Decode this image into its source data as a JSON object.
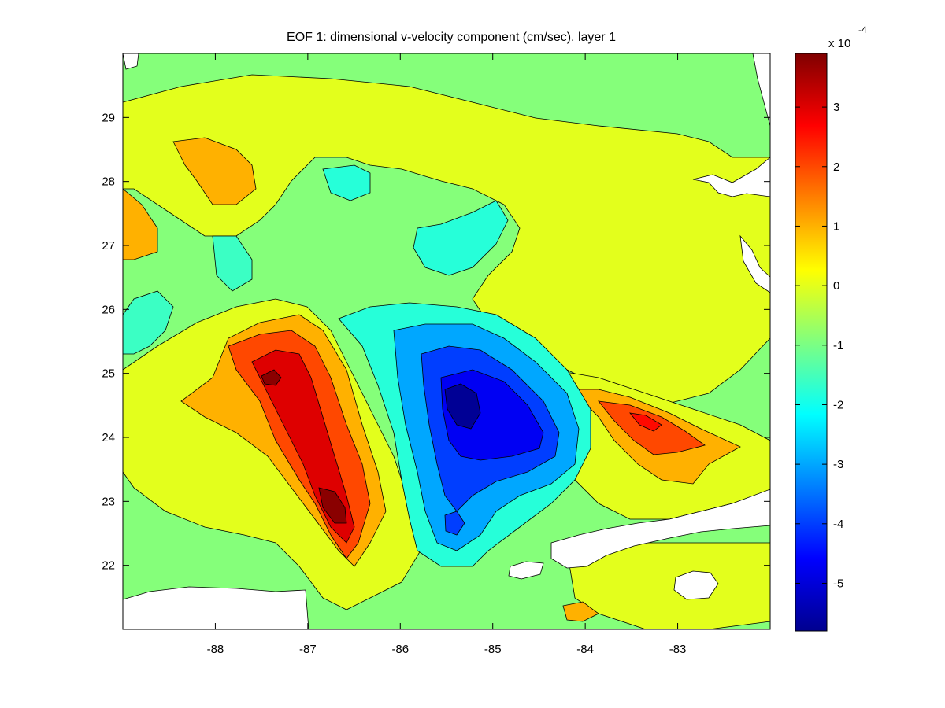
{
  "chart_data": {
    "type": "heatmap",
    "title": "EOF 1: dimensional v-velocity component (cm/sec), layer 1",
    "xlabel": "",
    "ylabel": "",
    "xlim": [
      -89,
      -82
    ],
    "ylim": [
      21,
      30
    ],
    "x_ticks": [
      "-88",
      "-87",
      "-86",
      "-85",
      "-84",
      "-83"
    ],
    "x_tick_values": [
      -88,
      -87,
      -86,
      -85,
      -84,
      -83
    ],
    "y_ticks": [
      "22",
      "23",
      "24",
      "25",
      "26",
      "27",
      "28",
      "29"
    ],
    "y_tick_values": [
      22,
      23,
      24,
      25,
      26,
      27,
      28,
      29
    ],
    "colorbar": {
      "label": "x 10",
      "exponent": "-4",
      "range": [
        -5.8,
        3.9
      ],
      "ticks": [
        "3",
        "2",
        "1",
        "0",
        "-1",
        "-2",
        "-3",
        "-4",
        "-5"
      ],
      "tick_values": [
        3,
        2,
        1,
        0,
        -1,
        -2,
        -3,
        -4,
        -5
      ],
      "colormap": "jet"
    },
    "features": [
      {
        "kind": "min",
        "lon": -85.2,
        "lat": 24.5,
        "value": -5.6
      },
      {
        "kind": "max",
        "lon": -87.3,
        "lat": 24.9,
        "value": 3.8
      },
      {
        "kind": "max",
        "lon": -86.8,
        "lat": 23.0,
        "value": 3.8
      },
      {
        "kind": "max",
        "lon": -83.3,
        "lat": 24.1,
        "value": 2.5
      }
    ]
  },
  "colors": {
    "background": "#ffffff",
    "contour_line": "#000000",
    "land": "#ffffff"
  }
}
